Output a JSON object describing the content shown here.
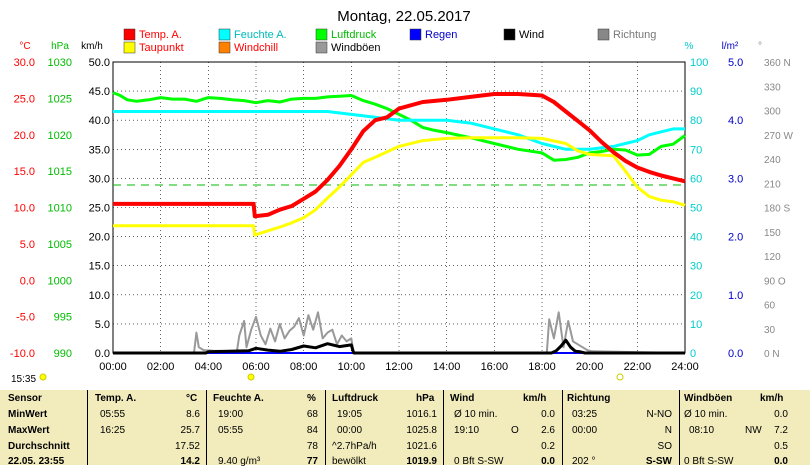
{
  "chart_data": {
    "type": "line",
    "title": "Montag, 22.05.2017",
    "x_ticks": [
      "00:00",
      "02:00",
      "04:00",
      "06:00",
      "08:00",
      "10:00",
      "12:00",
      "14:00",
      "16:00",
      "18:00",
      "20:00",
      "22:00",
      "24:00"
    ],
    "xlim": [
      0,
      24
    ],
    "axes": {
      "temp": {
        "unit": "°C",
        "ticks": [
          "30.0",
          "25.0",
          "20.0",
          "15.0",
          "10.0",
          "5.0",
          "0.0",
          "-5.0",
          "-10.0"
        ],
        "range": [
          -10,
          30
        ],
        "color": "#ff0000"
      },
      "press": {
        "unit": "hPa",
        "ticks": [
          "1030",
          "1025",
          "1020",
          "1015",
          "1010",
          "1005",
          "1000",
          "995",
          "990"
        ],
        "range": [
          990,
          1030
        ],
        "color": "#00bb00"
      },
      "wind": {
        "unit": "km/h",
        "ticks": [
          "50.0",
          "45.0",
          "40.0",
          "35.0",
          "30.0",
          "25.0",
          "20.0",
          "15.0",
          "10.0",
          "5.0",
          "0.0"
        ],
        "range": [
          0,
          50
        ],
        "color": "#000000"
      },
      "hum": {
        "unit": "%",
        "ticks": [
          "100",
          "90",
          "80",
          "70",
          "60",
          "50",
          "40",
          "30",
          "20",
          "10",
          "0"
        ],
        "range": [
          0,
          100
        ],
        "color": "#00cccc"
      },
      "rain": {
        "unit": "l/m²",
        "ticks": [
          "5.0",
          "4.0",
          "3.0",
          "2.0",
          "1.0",
          "0.0"
        ],
        "range": [
          0,
          5
        ],
        "color": "#0000cc"
      },
      "dir": {
        "unit": "°",
        "ticks": [
          "360 N",
          "330",
          "300",
          "270 W",
          "240",
          "210",
          "180 S",
          "150",
          "120",
          "90 O",
          "60",
          "30",
          "0 N"
        ],
        "range": [
          0,
          360
        ],
        "color": "#888888"
      }
    },
    "legend": [
      {
        "name": "Temp. A.",
        "color": "#ff0000"
      },
      {
        "name": "Feuchte A.",
        "color": "#00ffff"
      },
      {
        "name": "Luftdruck",
        "color": "#00ff00"
      },
      {
        "name": "Regen",
        "color": "#0000ff"
      },
      {
        "name": "Wind",
        "color": "#000000"
      },
      {
        "name": "Richtung",
        "color": "#888888"
      },
      {
        "name": "Taupunkt",
        "color": "#ffff00"
      },
      {
        "name": "Windchill",
        "color": "#ff8000"
      },
      {
        "name": "Windböen",
        "color": "#999999"
      }
    ],
    "series": [
      {
        "name": "Temp. A.",
        "axis": "temp",
        "color": "#ff0000",
        "x": [
          0,
          5.9,
          5.95,
          6.5,
          7,
          7.5,
          8,
          8.5,
          9,
          9.5,
          10,
          10.5,
          11,
          11.5,
          12,
          13,
          14,
          15,
          16,
          17,
          18,
          18.5,
          19,
          19.5,
          20,
          20.5,
          21,
          21.5,
          22,
          22.5,
          23,
          23.5,
          24
        ],
        "y": [
          10.5,
          10.5,
          8.8,
          9.0,
          9.7,
          10.2,
          11.2,
          12.2,
          13.8,
          15.7,
          18.0,
          20.5,
          22.0,
          22.4,
          23.6,
          24.5,
          24.8,
          25.2,
          25.6,
          25.6,
          25.4,
          24.5,
          23.2,
          21.9,
          20.6,
          19.0,
          17.6,
          16.4,
          15.5,
          14.9,
          14.4,
          14.0,
          13.6
        ]
      },
      {
        "name": "Taupunkt",
        "axis": "temp",
        "color": "#ffff00",
        "x": [
          0,
          5.9,
          5.95,
          6.5,
          7,
          7.5,
          8,
          8.5,
          9,
          9.5,
          10,
          10.5,
          11,
          12,
          13,
          14,
          15,
          16,
          17,
          18,
          19,
          19.5,
          20,
          20.5,
          21,
          21.5,
          22,
          22.5,
          23,
          23.5,
          24
        ],
        "y": [
          7.5,
          7.5,
          6.2,
          6.8,
          7.3,
          7.9,
          8.6,
          9.7,
          11.3,
          12.8,
          14.5,
          16.2,
          16.9,
          18.4,
          19.2,
          19.5,
          19.6,
          19.6,
          19.6,
          19.5,
          18.8,
          17.8,
          17.3,
          17.2,
          17.1,
          15.0,
          12.8,
          11.5,
          11.0,
          10.8,
          10.3
        ]
      },
      {
        "name": "Feuchte A.",
        "axis": "hum",
        "color": "#00ffff",
        "x": [
          0,
          6,
          7,
          8,
          9,
          10,
          11,
          12,
          13,
          14,
          15,
          16,
          17,
          18,
          19,
          20,
          21,
          21.5,
          22,
          22.5,
          23,
          23.5,
          24
        ],
        "y": [
          83,
          83,
          83,
          83,
          83,
          82,
          81,
          80,
          80,
          80,
          79,
          77,
          75,
          72,
          70,
          70,
          71,
          72,
          73,
          75,
          76,
          77,
          77
        ]
      },
      {
        "name": "Luftdruck",
        "axis": "press",
        "color": "#00ff00",
        "x": [
          0,
          0.3,
          0.6,
          1,
          1.5,
          2,
          2.5,
          3,
          3.5,
          4,
          4.5,
          5,
          5.5,
          6,
          6.5,
          7,
          7.5,
          8,
          8.5,
          9,
          9.5,
          10,
          10.5,
          11,
          11.5,
          12,
          12.5,
          13,
          13.5,
          14,
          15,
          16,
          17,
          18,
          18.5,
          19,
          19.5,
          20,
          20.5,
          21,
          21.5,
          22,
          22.5,
          23,
          23.5,
          24
        ],
        "y": [
          1025.8,
          1025.4,
          1024.8,
          1024.6,
          1024.8,
          1025.1,
          1024.9,
          1024.9,
          1024.6,
          1025.1,
          1025.0,
          1024.8,
          1024.7,
          1024.4,
          1024.7,
          1024.5,
          1024.9,
          1025.0,
          1025.0,
          1025.2,
          1025.3,
          1025.4,
          1024.7,
          1024.2,
          1023.6,
          1022.8,
          1022.0,
          1021.0,
          1020.6,
          1020.3,
          1019.6,
          1018.8,
          1018.0,
          1017.5,
          1016.5,
          1016.6,
          1016.9,
          1017.5,
          1017.7,
          1018.0,
          1017.9,
          1017.2,
          1017.3,
          1018.4,
          1018.7,
          1019.9
        ]
      },
      {
        "name": "Wind",
        "axis": "wind",
        "color": "#000000",
        "x": [
          0,
          3.9,
          4,
          5.7,
          6,
          6.5,
          7,
          7.5,
          8,
          8.5,
          9,
          9.5,
          10,
          10.1,
          18.4,
          18.6,
          18.8,
          19.0,
          19.2,
          19.4,
          19.6,
          19.8,
          24
        ],
        "y": [
          0,
          0,
          0.2,
          0.4,
          0.8,
          0.5,
          0.3,
          0.6,
          1.2,
          0.9,
          1.6,
          1.1,
          1.4,
          0,
          0,
          0.4,
          1.2,
          2.2,
          1.0,
          0.3,
          0.2,
          0,
          0
        ]
      },
      {
        "name": "Windböen",
        "axis": "wind",
        "color": "#999999",
        "x": [
          0,
          3.4,
          3.5,
          3.6,
          3.8,
          4.2,
          5.2,
          5.3,
          5.5,
          5.6,
          5.8,
          6.0,
          6.2,
          6.4,
          6.6,
          6.8,
          7.0,
          7.2,
          7.4,
          7.6,
          7.8,
          8.0,
          8.2,
          8.4,
          8.6,
          8.8,
          9.0,
          9.2,
          9.4,
          9.6,
          9.8,
          10.0,
          10.1,
          18.2,
          18.3,
          18.5,
          18.7,
          18.9,
          19.1,
          19.3,
          19.5,
          19.7,
          19.9,
          20.1,
          24
        ],
        "y": [
          0,
          0,
          3.5,
          1.0,
          0.5,
          0.4,
          0.3,
          3.0,
          5.5,
          1.0,
          4.0,
          6.2,
          3.0,
          1.5,
          4.2,
          2.0,
          5.0,
          2.5,
          3.8,
          4.5,
          6.0,
          3.0,
          6.5,
          4.0,
          7.0,
          2.5,
          3.5,
          4.0,
          1.5,
          3.0,
          2.0,
          2.5,
          0,
          0,
          5.8,
          2.5,
          7.0,
          1.0,
          5.5,
          2.0,
          1.5,
          1.0,
          0.5,
          0.3,
          0
        ]
      },
      {
        "name": "Regen",
        "axis": "rain",
        "color": "#0000ff",
        "x": [
          0,
          24
        ],
        "y": [
          0,
          0
        ]
      }
    ]
  },
  "stats": {
    "time_label": "15:35",
    "row_labels": [
      "Sensor",
      "MinWert",
      "MaxWert",
      "Durchschnitt",
      "22.05. 23:55"
    ],
    "temp": {
      "header": "Temp. A.",
      "unit": "°C",
      "min_time": "05:55",
      "min": "8.6",
      "max_time": "16:25",
      "max": "25.7",
      "avg": "17.52",
      "last": "14.2"
    },
    "hum": {
      "header": "Feuchte A.",
      "unit": "%",
      "min_time": "19:00",
      "min": "68",
      "max_time": "05:55",
      "max": "84",
      "avg": "78",
      "last_note": "9.40 g/m³",
      "last": "77"
    },
    "press": {
      "header": "Luftdruck",
      "unit": "hPa",
      "min_time": "19:05",
      "min": "1016.1",
      "max_time": "00:00",
      "max": "1025.8",
      "avg_note": "^2.7hPa/h",
      "avg": "1021.6",
      "last_note": "bewölkt",
      "last": "1019.9"
    },
    "wind": {
      "header": "Wind",
      "unit": "km/h",
      "min_time": "Ø 10 min.",
      "min": "0.0",
      "max_time": "19:10",
      "max_dir": "O",
      "max": "2.6",
      "avg": "0.2",
      "last_note": "0 Bft S-SW",
      "last": "0.0"
    },
    "dir": {
      "header": "Richtung",
      "min_time": "03:25",
      "min": "N-NO",
      "max_time": "00:00",
      "max": "N",
      "avg": "SO",
      "last_note": "202 °",
      "last": "S-SW"
    },
    "gust": {
      "header": "Windböen",
      "unit": "km/h",
      "min_time": "Ø 10 min.",
      "min": "0.0",
      "max_time": "08:10",
      "max_dir": "NW",
      "max": "7.2",
      "avg": "0.5",
      "last_note": "0 Bft S-SW",
      "last": "0.0"
    }
  }
}
